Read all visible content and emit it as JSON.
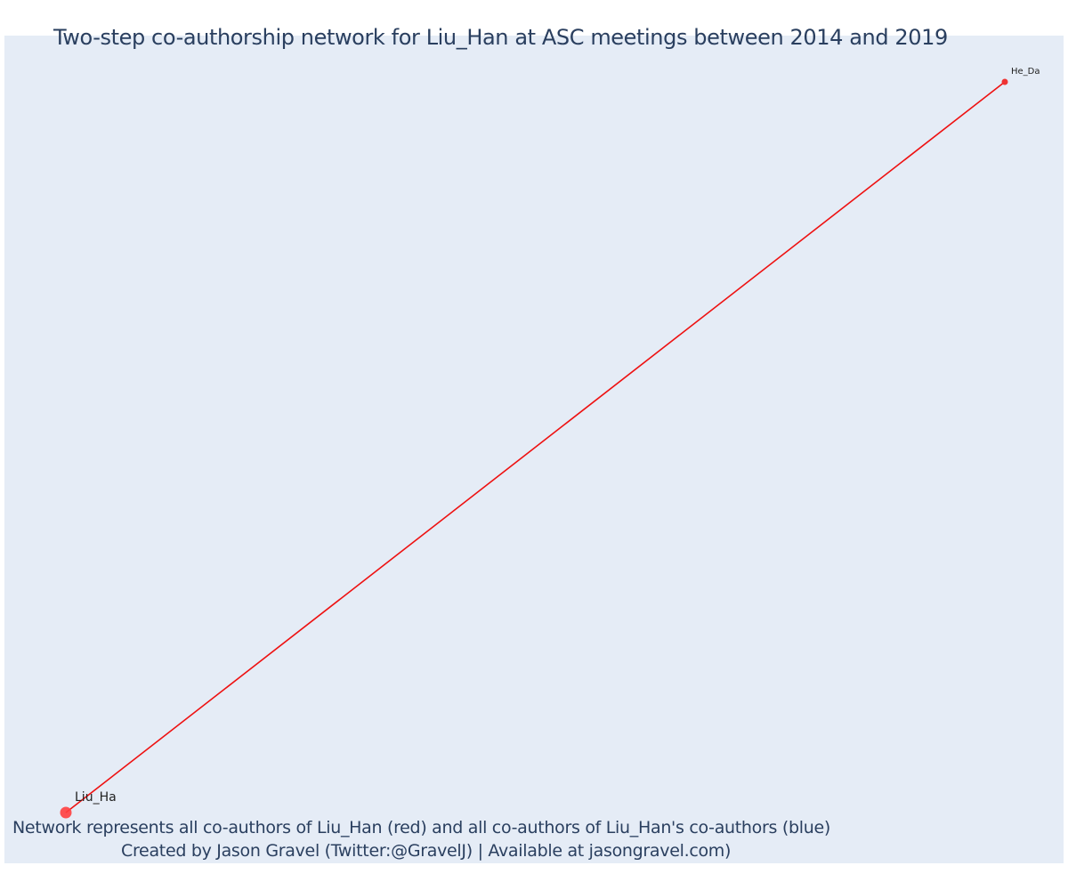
{
  "title": "Two-step co-authorship network for Liu_Han at ASC meetings between 2014 and 2019",
  "caption": {
    "line1": "Network represents all co-authors of Liu_Han (red) and all co-authors of Liu_Han's co-authors (blue)",
    "line2": "Created by Jason Gravel (Twitter:@GravelJ) | Available at jasongravel.com)"
  },
  "colors": {
    "background": "#e5ecf6",
    "focal_node": "#ff4040",
    "coauthor_node": "#ef3333",
    "edge": "#ee1111",
    "text": "#2a3f5f"
  },
  "network": {
    "nodes": [
      {
        "id": "liu",
        "label": "Liu_Ha",
        "role": "focal"
      },
      {
        "id": "he",
        "label": "He_Da",
        "role": "coauthor"
      }
    ],
    "edges": [
      {
        "source": "liu",
        "target": "he"
      }
    ]
  }
}
